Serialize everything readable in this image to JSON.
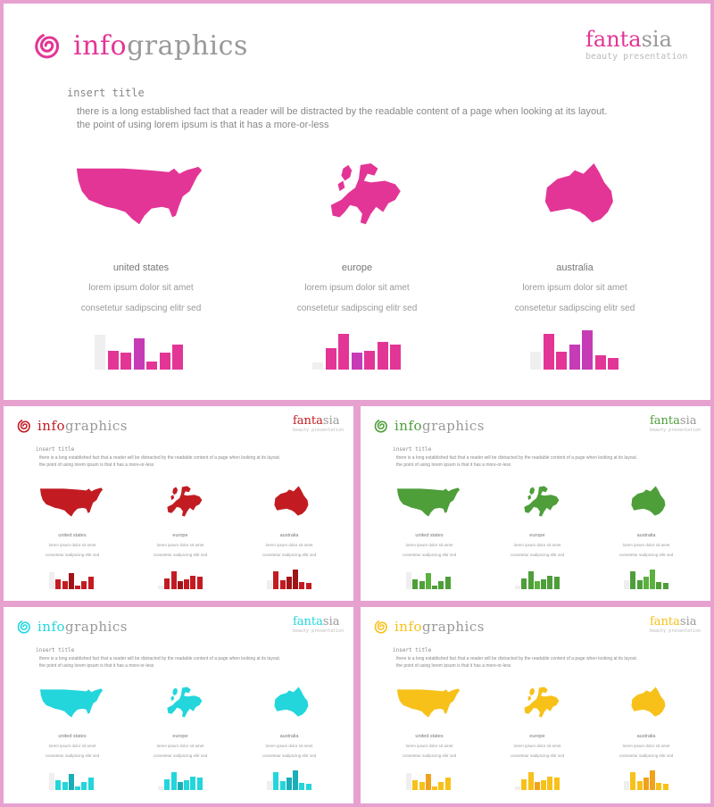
{
  "common": {
    "logo_prefix": "info",
    "logo_suffix": "graphics",
    "brand_prefix": "fanta",
    "brand_suffix": "sia",
    "brand_tagline": "beauty presentation",
    "insert_title": "insert title",
    "intro_line1": "there is a long established fact that a reader will be distracted by the readable content of a page when looking at its layout.",
    "intro_line2": "the point of using lorem ipsum is that it has a more-or-less",
    "regions": [
      {
        "name": "united states",
        "desc1": "lorem ipsum dolor sit amet",
        "desc2": "consetetur sadipscing elitr sed"
      },
      {
        "name": "europe",
        "desc1": "lorem ipsum dolor sit amet",
        "desc2": "consetetur sadipscing elitr sed"
      },
      {
        "name": "australia",
        "desc1": "lorem ipsum dolor sit amet",
        "desc2": "consetetur sadipscing elitr sed"
      }
    ]
  },
  "bar_levels": [
    [
      0.97,
      0.53,
      0.47,
      0.88,
      0.22,
      0.47,
      0.69
    ],
    [
      0.19,
      0.61,
      1.0,
      0.47,
      0.53,
      0.77,
      0.71
    ],
    [
      0.5,
      1.0,
      0.5,
      0.71,
      1.09,
      0.41,
      0.33
    ]
  ],
  "slides": [
    {
      "id": "magenta",
      "accent": "#e33596",
      "accent2": "#c63bb6"
    },
    {
      "id": "red",
      "accent": "#c21c22",
      "accent2": "#a01418"
    },
    {
      "id": "green",
      "accent": "#4e9e3a",
      "accent2": "#5cb040"
    },
    {
      "id": "cyan",
      "accent": "#22d6dc",
      "accent2": "#1aaeb8"
    },
    {
      "id": "yellow",
      "accent": "#f7c11a",
      "accent2": "#f0a21c"
    }
  ]
}
